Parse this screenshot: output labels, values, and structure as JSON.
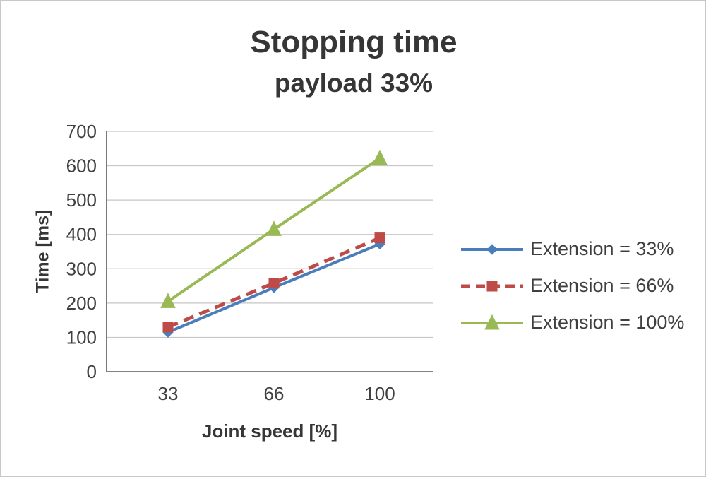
{
  "chart_data": {
    "type": "line",
    "title": "Stopping time",
    "subtitle": "payload 33%",
    "xlabel": "Joint speed [%]",
    "ylabel": "Time [ms]",
    "x": [
      33,
      66,
      100
    ],
    "x_tick_labels": [
      "33",
      "66",
      "100"
    ],
    "ylim": [
      0,
      700
    ],
    "yticks": [
      0,
      100,
      200,
      300,
      400,
      500,
      600,
      700
    ],
    "grid": true,
    "legend_position": "right",
    "series": [
      {
        "name": "Extension = 33%",
        "values": [
          115,
          245,
          372
        ],
        "color": "#4a7ebb",
        "marker": "diamond",
        "dash": "solid"
      },
      {
        "name": "Extension = 66%",
        "values": [
          130,
          258,
          390
        ],
        "color": "#be4b48",
        "marker": "square",
        "dash": "dashed"
      },
      {
        "name": "Extension = 100%",
        "values": [
          205,
          415,
          622
        ],
        "color": "#98b954",
        "marker": "triangle",
        "dash": "solid"
      }
    ],
    "colors": {
      "gridline": "#c6c6c6",
      "axis": "#595959",
      "tick_text": "#404040"
    }
  }
}
